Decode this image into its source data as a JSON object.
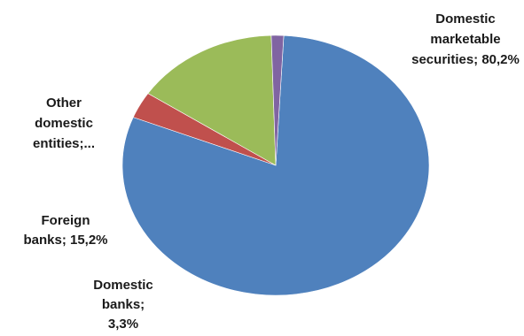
{
  "chart_data": {
    "type": "pie",
    "slices": [
      {
        "label": "Domestic marketable securities; 80,2%",
        "value": 80.2,
        "color": "#4f81bd"
      },
      {
        "label": "Domestic banks; 3,3%",
        "value": 3.3,
        "color": "#c0504d"
      },
      {
        "label": "Foreign banks; 15,2%",
        "value": 15.2,
        "color": "#9bbb59"
      },
      {
        "label": "Other domestic entities;...",
        "value": 1.3,
        "color": "#8064a2"
      }
    ],
    "data_labels": [
      {
        "lines": [
          "Domestic",
          "marketable",
          "securities; 80,2%"
        ]
      },
      {
        "lines": [
          "Domestic",
          "banks;",
          "3,3%"
        ]
      },
      {
        "lines": [
          "Foreign",
          "banks; 15,2%"
        ]
      },
      {
        "lines": [
          "Other",
          "domestic",
          "entities;..."
        ]
      }
    ],
    "legend": "none"
  }
}
